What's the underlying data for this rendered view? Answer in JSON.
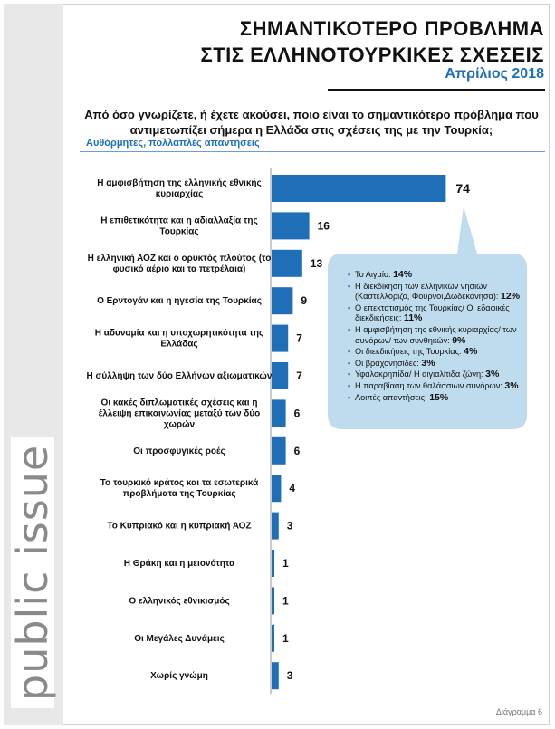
{
  "header": {
    "title_line1": "ΣΗΜΑΝΤΙΚΟΤΕΡΟ ΠΡΟΒΛΗΜΑ",
    "title_line2": "ΣΤΙΣ ΕΛΛΗΝΟΤΟΥΡΚΙΚΕΣ ΣΧΕΣΕΙΣ",
    "date": "Απρίλιος 2018"
  },
  "question": {
    "line1": "Από όσο γνωρίζετε, ή έχετε ακούσει, ποιο είναι το σημαντικότερο πρόβλημα που",
    "line2": "αντιμετωπίζει σήμερα η Ελλάδα στις σχέσεις της με την Τουρκία;",
    "note": "Αυθόρμητες, πολλαπλές απαντήσεις"
  },
  "brand": "public issue",
  "footer": "Διάγραμμα 6",
  "colors": {
    "bar": "#1f6fb8",
    "accent": "#1f6fb8",
    "callout_bg": "#bfdcef",
    "brand_bg": "#e8e8e8"
  },
  "chart_data": {
    "type": "bar",
    "orientation": "horizontal",
    "categories": [
      [
        "Η αμφισβήτηση της ελληνικής εθνικής",
        "κυριαρχίας"
      ],
      [
        "Η επιθετικότητα και η αδιαλλαξία της",
        "Τουρκίας"
      ],
      [
        "Η ελληνική ΑΟΖ και ο ορυκτός πλούτος (το",
        "φυσικό αέριο και τα πετρέλαια)"
      ],
      [
        "Ο Ερντογάν και η ηγεσία της Τουρκίας"
      ],
      [
        "Η αδυναμία και η υποχωρητικότητα της",
        "Ελλάδας"
      ],
      [
        "Η σύλληψη των δύο Ελλήνων αξιωματικών"
      ],
      [
        "Οι κακές διπλωματικές σχέσεις και η",
        "έλλειψη επικοινωνίας μεταξύ των δύο",
        "χωρών"
      ],
      [
        "Οι προσφυγικές ροές"
      ],
      [
        "Το τουρκικό κράτος και τα εσωτερικά",
        "προβλήματα της Τουρκίας"
      ],
      [
        "Το Κυπριακό και η κυπριακή ΑΟΖ"
      ],
      [
        "Η Θράκη και η μειονότητα"
      ],
      [
        "Ο ελληνικός εθνικισμός"
      ],
      [
        "Οι Μεγάλες Δυνάμεις"
      ],
      [
        "Χωρίς γνώμη"
      ]
    ],
    "values": [
      74,
      16,
      13,
      9,
      7,
      7,
      6,
      6,
      4,
      3,
      1,
      1,
      1,
      3
    ],
    "xlim": [
      0,
      80
    ],
    "grid": false,
    "annotation": {
      "points_to": "Η αμφισβήτηση της ελληνικής εθνικής κυριαρχίας",
      "items": [
        {
          "text": "Το Αιγαίο:",
          "value": "14%"
        },
        {
          "text": "Η διεκδίκηση των ελληνικών νησιών (Καστελλόριζο, Φούρνοι,Δωδεκάνησα):",
          "value": "12%"
        },
        {
          "text": "Ο επεκτατισμός της Τουρκίας/ Οι εδαφικές διεκδικήσεις:",
          "value": "11%"
        },
        {
          "text": "Η αμφισβήτηση της εθνικής κυριαρχίας/ των συνόρων/ των συνθηκών:",
          "value": "9%"
        },
        {
          "text": "Οι διεκδικήσεις της Τουρκίας:",
          "value": "4%"
        },
        {
          "text": "Οι βραχονησίδες:",
          "value": "3%"
        },
        {
          "text": "Υφαλοκρηπίδα/ Η αιγιαλίτιδα ζώνη:",
          "value": "3%"
        },
        {
          "text": "Η παραβίαση των θαλάσσιων συνόρων:",
          "value": "3%"
        },
        {
          "text": "Λοιπές απαντήσεις:",
          "value": "15%"
        }
      ]
    }
  }
}
